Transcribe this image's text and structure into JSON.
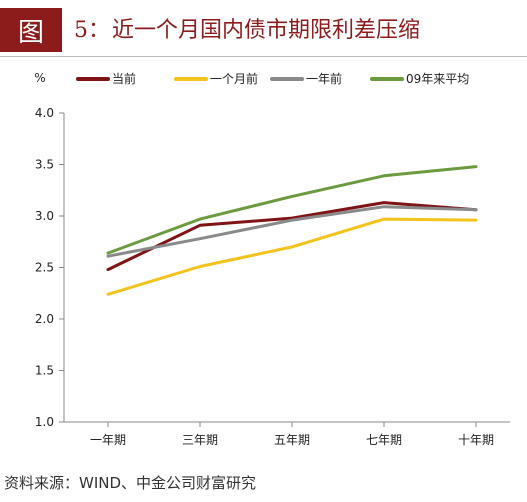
{
  "header": {
    "fig_label": "图",
    "fig_number": "5：",
    "fig_title": "近一个月国内债市期限利差压缩"
  },
  "source": "资料来源：WIND、中金公司财富研究",
  "chart_data": {
    "type": "line",
    "ylabel": "%",
    "ylim": [
      1.0,
      4.0
    ],
    "yticks": [
      "1.0",
      "1.5",
      "2.0",
      "2.5",
      "3.0",
      "3.5",
      "4.0"
    ],
    "categories": [
      "一年期",
      "三年期",
      "五年期",
      "七年期",
      "十年期"
    ],
    "legend_position": "top",
    "grid": false,
    "series": [
      {
        "name": "当前",
        "color": "#7f1416",
        "values": [
          2.48,
          2.91,
          2.98,
          3.13,
          3.06
        ]
      },
      {
        "name": "一个月前",
        "color": "#f2c31b",
        "values": [
          2.24,
          2.51,
          2.7,
          2.97,
          2.96
        ]
      },
      {
        "name": "一年前",
        "color": "#8a8a8a",
        "values": [
          2.61,
          2.78,
          2.96,
          3.09,
          3.06
        ]
      },
      {
        "name": "09年来平均",
        "color": "#6b9a3f",
        "values": [
          2.64,
          2.97,
          3.19,
          3.39,
          3.48
        ]
      }
    ]
  }
}
